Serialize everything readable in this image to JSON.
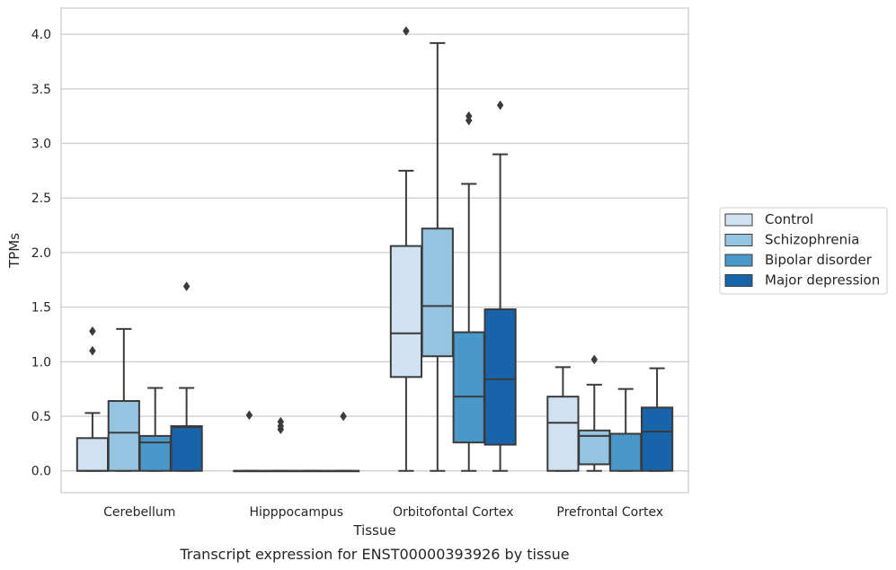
{
  "chart_data": {
    "type": "box",
    "caption": "Transcript expression for ENST00000393926 by tissue",
    "xlabel": "Tissue",
    "ylabel": "TPMs",
    "ylim": [
      -0.2,
      4.24
    ],
    "yticks": [
      "0.0",
      "0.5",
      "1.0",
      "1.5",
      "2.0",
      "2.5",
      "3.0",
      "3.5",
      "4.0"
    ],
    "ytick_values": [
      0,
      0.5,
      1.0,
      1.5,
      2.0,
      2.5,
      3.0,
      3.5,
      4.0
    ],
    "grid": "horizontal",
    "legend_position": "right",
    "categories": [
      "Cerebellum",
      "Hipppocampus",
      "Orbitofontal Cortex",
      "Prefrontal Cortex"
    ],
    "series": [
      {
        "name": "Control",
        "color": "#d0e1f2",
        "boxes": [
          {
            "whisker_low": 0.0,
            "q1": 0.0,
            "median": 0.0,
            "q3": 0.3,
            "whisker_high": 0.53,
            "outliers": [
              1.1,
              1.28
            ]
          },
          {
            "whisker_low": 0.0,
            "q1": 0.0,
            "median": 0.0,
            "q3": 0.0,
            "whisker_high": 0.0,
            "outliers": [
              0.51
            ]
          },
          {
            "whisker_low": 0.0,
            "q1": 0.86,
            "median": 1.26,
            "q3": 2.06,
            "whisker_high": 2.75,
            "outliers": [
              4.03
            ]
          },
          {
            "whisker_low": 0.0,
            "q1": 0.0,
            "median": 0.44,
            "q3": 0.68,
            "whisker_high": 0.95,
            "outliers": []
          }
        ]
      },
      {
        "name": "Schizophrenia",
        "color": "#94c4df",
        "boxes": [
          {
            "whisker_low": 0.0,
            "q1": 0.0,
            "median": 0.35,
            "q3": 0.64,
            "whisker_high": 1.3,
            "outliers": []
          },
          {
            "whisker_low": 0.0,
            "q1": 0.0,
            "median": 0.0,
            "q3": 0.0,
            "whisker_high": 0.0,
            "outliers": [
              0.38,
              0.41,
              0.45
            ]
          },
          {
            "whisker_low": 0.0,
            "q1": 1.05,
            "median": 1.51,
            "q3": 2.22,
            "whisker_high": 3.92,
            "outliers": []
          },
          {
            "whisker_low": 0.0,
            "q1": 0.06,
            "median": 0.32,
            "q3": 0.37,
            "whisker_high": 0.79,
            "outliers": [
              1.02
            ]
          }
        ]
      },
      {
        "name": "Bipolar disorder",
        "color": "#4a98c9",
        "boxes": [
          {
            "whisker_low": 0.0,
            "q1": 0.0,
            "median": 0.26,
            "q3": 0.32,
            "whisker_high": 0.76,
            "outliers": []
          },
          {
            "whisker_low": 0.0,
            "q1": 0.0,
            "median": 0.0,
            "q3": 0.0,
            "whisker_high": 0.0,
            "outliers": []
          },
          {
            "whisker_low": 0.0,
            "q1": 0.26,
            "median": 0.68,
            "q3": 1.27,
            "whisker_high": 2.63,
            "outliers": [
              3.21,
              3.25
            ]
          },
          {
            "whisker_low": 0.0,
            "q1": 0.0,
            "median": 0.34,
            "q3": 0.34,
            "whisker_high": 0.75,
            "outliers": []
          }
        ]
      },
      {
        "name": "Major depression",
        "color": "#1764ab",
        "boxes": [
          {
            "whisker_low": 0.0,
            "q1": 0.0,
            "median": 0.4,
            "q3": 0.41,
            "whisker_high": 0.76,
            "outliers": [
              1.69
            ]
          },
          {
            "whisker_low": 0.0,
            "q1": 0.0,
            "median": 0.0,
            "q3": 0.0,
            "whisker_high": 0.0,
            "outliers": [
              0.5
            ]
          },
          {
            "whisker_low": 0.0,
            "q1": 0.24,
            "median": 0.84,
            "q3": 1.48,
            "whisker_high": 2.9,
            "outliers": [
              3.35
            ]
          },
          {
            "whisker_low": 0.0,
            "q1": 0.0,
            "median": 0.36,
            "q3": 0.58,
            "whisker_high": 0.94,
            "outliers": []
          }
        ]
      }
    ]
  }
}
